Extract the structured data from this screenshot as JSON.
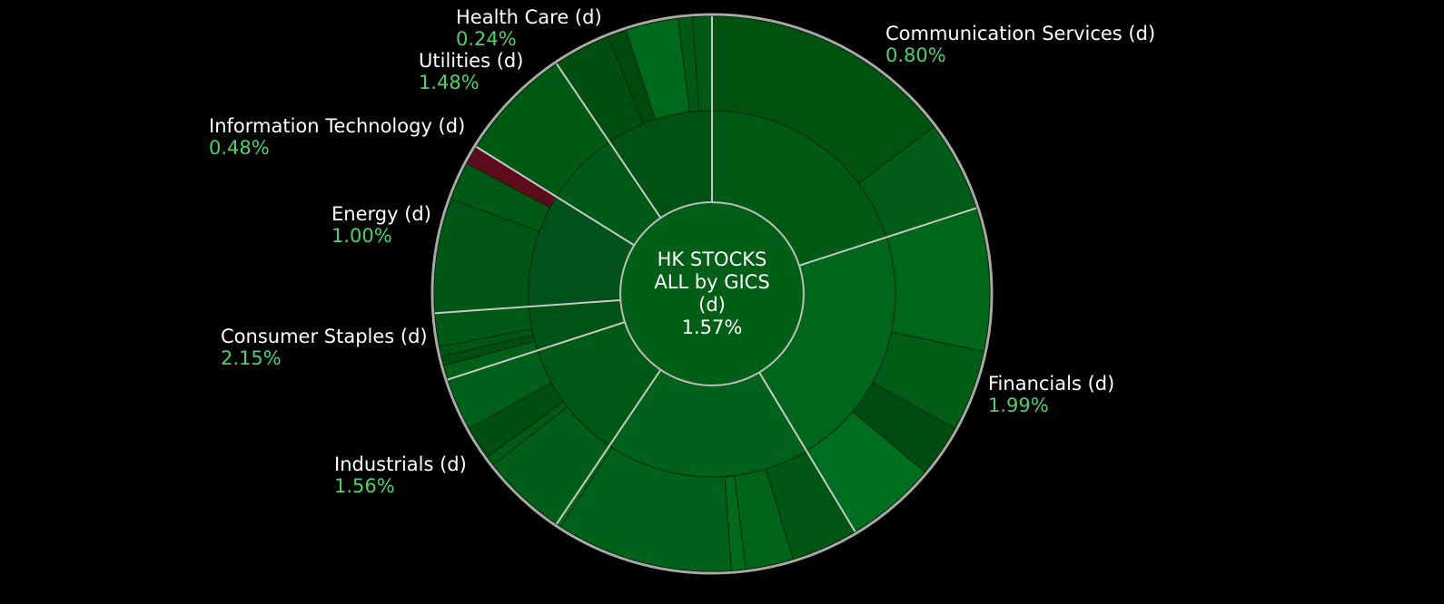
{
  "chart_data": {
    "type": "sunburst",
    "title": "",
    "center": {
      "lines": [
        "HK STOCKS",
        "ALL by GICS",
        "(d)"
      ],
      "value": "1.57%"
    },
    "sectors": [
      {
        "name": "Communication Services (d)",
        "value": "0.80%",
        "start": 0,
        "end": 72,
        "color": "#005a14",
        "children": [
          {
            "start": 0,
            "end": 53,
            "color": "#00530f"
          },
          {
            "start": 53,
            "end": 72,
            "color": "#005c16"
          }
        ]
      },
      {
        "name": "Financials (d)",
        "value": "1.99%",
        "start": 72,
        "end": 149,
        "color": "#00661c",
        "children": [
          {
            "start": 72,
            "end": 102,
            "color": "#00661a"
          },
          {
            "start": 102,
            "end": 119,
            "color": "#005d16"
          },
          {
            "start": 119,
            "end": 130,
            "color": "#004c10"
          },
          {
            "start": 130,
            "end": 149,
            "color": "#006e20"
          }
        ]
      },
      {
        "name": "Industrials (d)",
        "value": "1.56%",
        "start": 149,
        "end": 214,
        "color": "#00611a",
        "children": [
          {
            "start": 149,
            "end": 163,
            "color": "#005612"
          },
          {
            "start": 163,
            "end": 173,
            "color": "#006419"
          },
          {
            "start": 173,
            "end": 176,
            "color": "#006a1c"
          },
          {
            "start": 176,
            "end": 213,
            "color": "#00621a"
          },
          {
            "start": 213,
            "end": 214,
            "color": "#00691d"
          }
        ]
      },
      {
        "name": "Consumer Staples (d)",
        "value": "2.15%",
        "start": 214,
        "end": 252,
        "color": "#005a16",
        "children": [
          {
            "start": 214,
            "end": 232,
            "color": "#005e18"
          },
          {
            "start": 232,
            "end": 234,
            "color": "#005b16"
          },
          {
            "start": 234,
            "end": 241,
            "color": "#004e10"
          },
          {
            "start": 241,
            "end": 252,
            "color": "#00601a"
          }
        ]
      },
      {
        "name": "Energy (d)",
        "value": "1.00%",
        "start": 252,
        "end": 266,
        "color": "#005314",
        "children": [
          {
            "start": 252,
            "end": 255,
            "color": "#005f18"
          },
          {
            "start": 255,
            "end": 257,
            "color": "#004e10"
          },
          {
            "start": 257,
            "end": 259,
            "color": "#005614"
          },
          {
            "start": 259,
            "end": 266,
            "color": "#005914"
          }
        ]
      },
      {
        "name": "Information Technology (d)",
        "value": "0.48%",
        "start": 266,
        "end": 302,
        "color": "#00521a",
        "children": [
          {
            "start": 266,
            "end": 290,
            "color": "#005614"
          },
          {
            "start": 290,
            "end": 298,
            "color": "#005a16"
          },
          {
            "start": 298,
            "end": 302,
            "color": "#5c0a1c"
          }
        ]
      },
      {
        "name": "Utilities (d)",
        "value": "1.48%",
        "start": 302,
        "end": 326,
        "color": "#005a17",
        "children": [
          {
            "start": 302,
            "end": 326,
            "color": "#005a14"
          }
        ]
      },
      {
        "name": "Health Care (d)",
        "value": "0.24%",
        "start": 326,
        "end": 360,
        "color": "#005214",
        "children": [
          {
            "start": 326,
            "end": 338,
            "color": "#004e10"
          },
          {
            "start": 338,
            "end": 342,
            "color": "#004a0e"
          },
          {
            "start": 342,
            "end": 353,
            "color": "#006a1c"
          },
          {
            "start": 353,
            "end": 356,
            "color": "#005a14"
          },
          {
            "start": 356,
            "end": 360,
            "color": "#005a16"
          }
        ]
      }
    ]
  }
}
